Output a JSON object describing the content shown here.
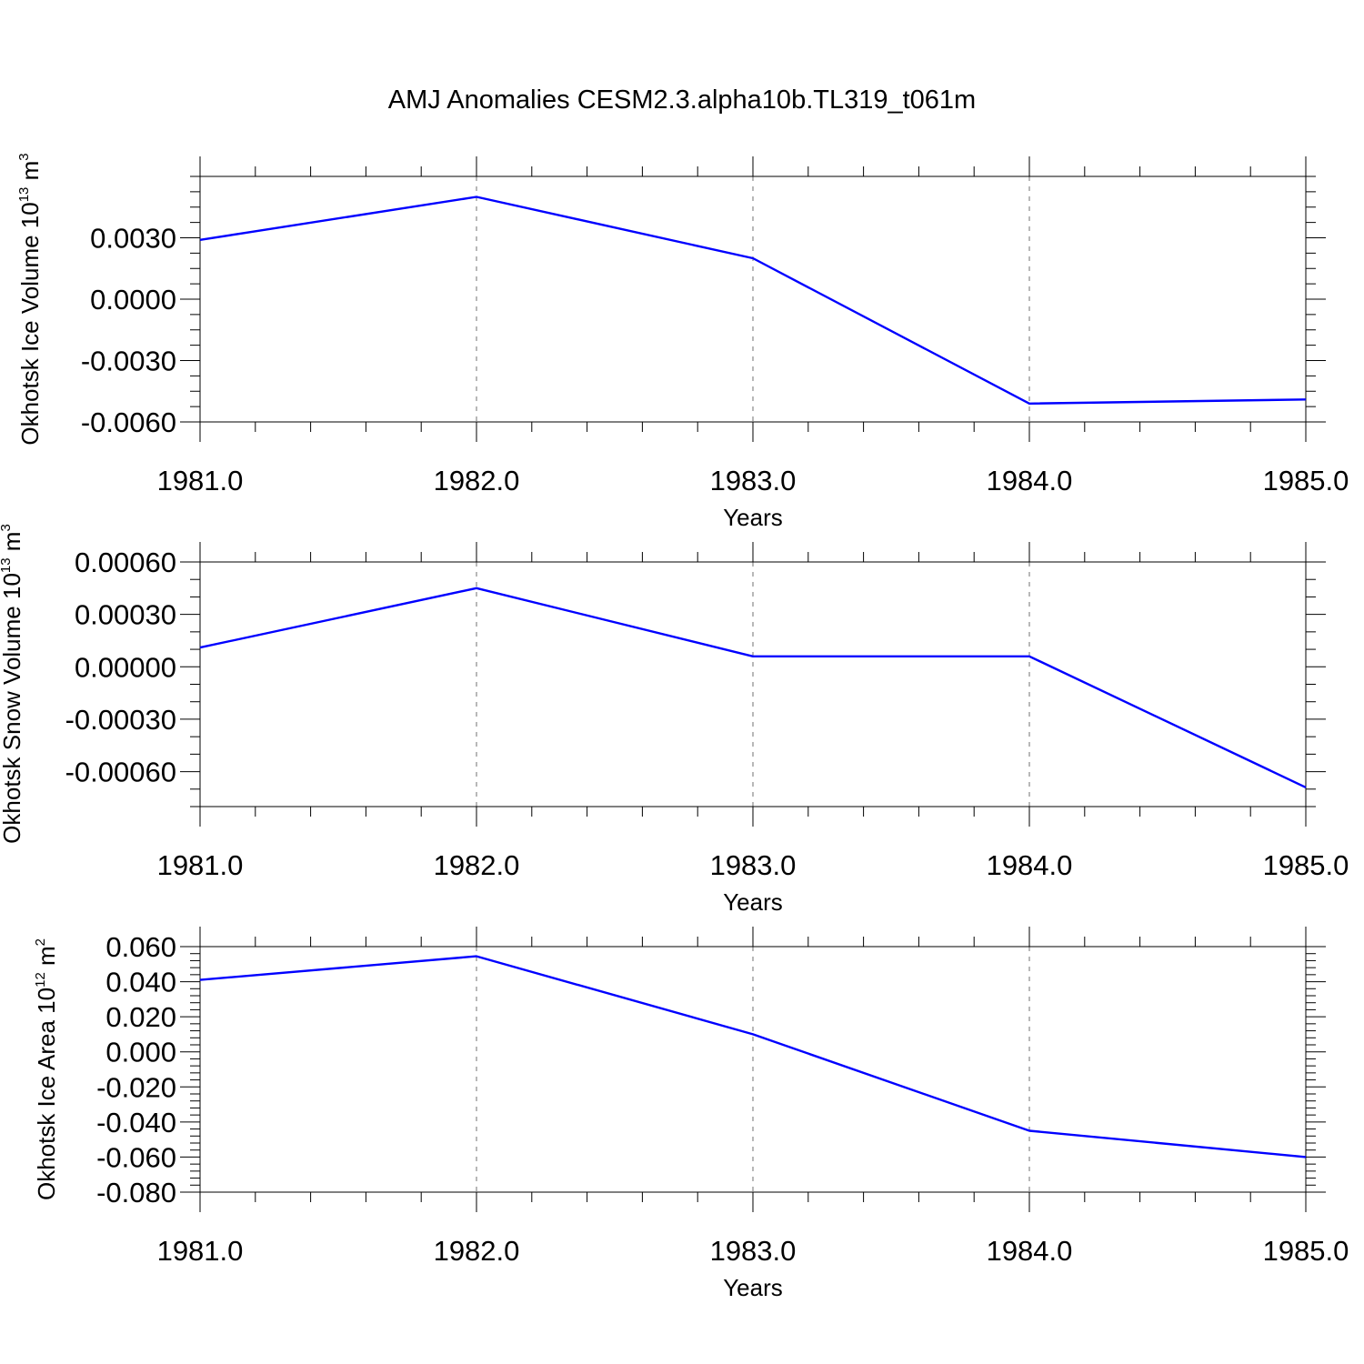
{
  "title": "AMJ Anomalies CESM2.3.alpha10b.TL319_t061m",
  "chart_data": [
    {
      "type": "line",
      "ylabel": "Okhotsk Ice Volume 10",
      "ylabel_exp": "13",
      "ylabel_unit": "m",
      "ylabel_unit_exp": "3",
      "xlabel": "Years",
      "x": [
        1981,
        1982,
        1983,
        1984,
        1985
      ],
      "series": [
        {
          "values": [
            0.0029,
            0.005,
            0.002,
            -0.0051,
            -0.0049
          ],
          "color": "#0000ff"
        }
      ],
      "xlim": [
        1981,
        1985
      ],
      "ylim": [
        -0.006,
        0.006
      ],
      "yticks": [
        -0.006,
        -0.003,
        0.0,
        0.003
      ],
      "ytick_labels": [
        "-0.0060",
        "-0.0030",
        "0.0000",
        "0.0030"
      ],
      "yminor_step": 0.00075,
      "xticks": [
        1981,
        1982,
        1983,
        1984,
        1985
      ],
      "xtick_labels": [
        "1981.0",
        "1982.0",
        "1983.0",
        "1984.0",
        "1985.0"
      ],
      "xminor_step": 0.2,
      "grid": "vertical dashed"
    },
    {
      "type": "line",
      "ylabel": "Okhotsk Snow Volume 10",
      "ylabel_exp": "13",
      "ylabel_unit": "m",
      "ylabel_unit_exp": "3",
      "xlabel": "Years",
      "x": [
        1981,
        1982,
        1983,
        1984,
        1985
      ],
      "series": [
        {
          "values": [
            0.00011,
            0.00045,
            6e-05,
            6e-05,
            -0.00069
          ],
          "color": "#0000ff"
        }
      ],
      "xlim": [
        1981,
        1985
      ],
      "ylim": [
        -0.0008,
        0.0006
      ],
      "yticks": [
        -0.0006,
        -0.0003,
        0.0,
        0.0003,
        0.0006
      ],
      "ytick_labels": [
        "-0.00060",
        "-0.00030",
        "0.00000",
        "0.00030",
        "0.00060"
      ],
      "yminor_step": 0.0001,
      "xticks": [
        1981,
        1982,
        1983,
        1984,
        1985
      ],
      "xtick_labels": [
        "1981.0",
        "1982.0",
        "1983.0",
        "1984.0",
        "1985.0"
      ],
      "xminor_step": 0.2,
      "grid": "vertical dashed"
    },
    {
      "type": "line",
      "ylabel": "Okhotsk Ice Area 10",
      "ylabel_exp": "12",
      "ylabel_unit": "m",
      "ylabel_unit_exp": "2",
      "xlabel": "Years",
      "x": [
        1981,
        1982,
        1983,
        1984,
        1985
      ],
      "series": [
        {
          "values": [
            0.041,
            0.0545,
            0.01,
            -0.045,
            -0.06
          ],
          "color": "#0000ff"
        }
      ],
      "xlim": [
        1981,
        1985
      ],
      "ylim": [
        -0.08,
        0.06
      ],
      "yticks": [
        -0.08,
        -0.06,
        -0.04,
        -0.02,
        0.0,
        0.02,
        0.04,
        0.06
      ],
      "ytick_labels": [
        "-0.080",
        "-0.060",
        "-0.040",
        "-0.020",
        "0.000",
        "0.020",
        "0.040",
        "0.060"
      ],
      "yminor_step": 0.004,
      "xticks": [
        1981,
        1982,
        1983,
        1984,
        1985
      ],
      "xtick_labels": [
        "1981.0",
        "1982.0",
        "1983.0",
        "1984.0",
        "1985.0"
      ],
      "xminor_step": 0.2,
      "grid": "vertical dashed"
    }
  ]
}
